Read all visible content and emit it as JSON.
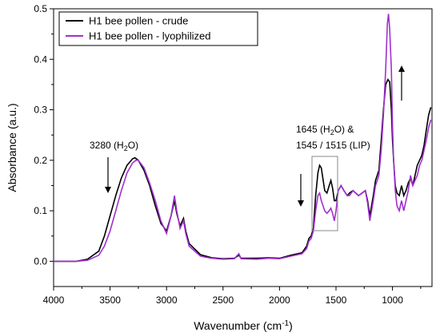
{
  "chart_data": {
    "type": "line",
    "title": "",
    "xlabel_main": "Wavenumber (cm",
    "xlabel_sup": "-1",
    "xlabel_tail": ")",
    "ylabel": "Absorbance (a.u.)",
    "xlim": [
      4000,
      650
    ],
    "ylim": [
      -0.05,
      0.5
    ],
    "x_ticks": [
      4000,
      3500,
      3000,
      2500,
      2000,
      1500,
      1000
    ],
    "y_ticks": [
      0.0,
      0.1,
      0.2,
      0.3,
      0.4,
      0.5
    ],
    "x_tick_labels": [
      "4000",
      "3500",
      "3000",
      "2500",
      "2000",
      "1500",
      "1000"
    ],
    "y_tick_labels": [
      "0.0",
      "0.1",
      "0.2",
      "0.3",
      "0.4",
      "0.5"
    ],
    "legend_position": "top-left",
    "series": [
      {
        "name": "H1 bee pollen - crude",
        "color": "#000000",
        "points": [
          [
            4000,
            0
          ],
          [
            3800,
            0.0
          ],
          [
            3700,
            0.004
          ],
          [
            3600,
            0.02
          ],
          [
            3550,
            0.05
          ],
          [
            3500,
            0.09
          ],
          [
            3450,
            0.13
          ],
          [
            3400,
            0.165
          ],
          [
            3350,
            0.19
          ],
          [
            3300,
            0.203
          ],
          [
            3280,
            0.205
          ],
          [
            3250,
            0.2
          ],
          [
            3200,
            0.18
          ],
          [
            3150,
            0.15
          ],
          [
            3100,
            0.11
          ],
          [
            3050,
            0.075
          ],
          [
            3000,
            0.06
          ],
          [
            2960,
            0.09
          ],
          [
            2930,
            0.12
          ],
          [
            2910,
            0.095
          ],
          [
            2880,
            0.07
          ],
          [
            2850,
            0.085
          ],
          [
            2830,
            0.06
          ],
          [
            2800,
            0.035
          ],
          [
            2700,
            0.013
          ],
          [
            2600,
            0.007
          ],
          [
            2500,
            0.005
          ],
          [
            2400,
            0.006
          ],
          [
            2360,
            0.012
          ],
          [
            2340,
            0.006
          ],
          [
            2200,
            0.006
          ],
          [
            2100,
            0.007
          ],
          [
            2000,
            0.006
          ],
          [
            1900,
            0.012
          ],
          [
            1800,
            0.017
          ],
          [
            1760,
            0.03
          ],
          [
            1740,
            0.045
          ],
          [
            1720,
            0.05
          ],
          [
            1700,
            0.065
          ],
          [
            1680,
            0.13
          ],
          [
            1660,
            0.175
          ],
          [
            1645,
            0.19
          ],
          [
            1630,
            0.185
          ],
          [
            1600,
            0.14
          ],
          [
            1580,
            0.135
          ],
          [
            1560,
            0.15
          ],
          [
            1545,
            0.16
          ],
          [
            1530,
            0.145
          ],
          [
            1515,
            0.12
          ],
          [
            1500,
            0.12
          ],
          [
            1480,
            0.14
          ],
          [
            1455,
            0.15
          ],
          [
            1430,
            0.14
          ],
          [
            1400,
            0.13
          ],
          [
            1380,
            0.135
          ],
          [
            1350,
            0.14
          ],
          [
            1300,
            0.13
          ],
          [
            1240,
            0.14
          ],
          [
            1220,
            0.12
          ],
          [
            1200,
            0.09
          ],
          [
            1170,
            0.13
          ],
          [
            1150,
            0.16
          ],
          [
            1120,
            0.18
          ],
          [
            1100,
            0.24
          ],
          [
            1080,
            0.3
          ],
          [
            1060,
            0.35
          ],
          [
            1040,
            0.36
          ],
          [
            1025,
            0.355
          ],
          [
            1010,
            0.3
          ],
          [
            1000,
            0.24
          ],
          [
            990,
            0.2
          ],
          [
            975,
            0.15
          ],
          [
            960,
            0.135
          ],
          [
            940,
            0.13
          ],
          [
            920,
            0.15
          ],
          [
            900,
            0.13
          ],
          [
            880,
            0.14
          ],
          [
            860,
            0.155
          ],
          [
            840,
            0.165
          ],
          [
            820,
            0.15
          ],
          [
            800,
            0.17
          ],
          [
            780,
            0.19
          ],
          [
            760,
            0.2
          ],
          [
            740,
            0.21
          ],
          [
            720,
            0.23
          ],
          [
            700,
            0.26
          ],
          [
            680,
            0.29
          ],
          [
            660,
            0.305
          ]
        ]
      },
      {
        "name": "H1 bee pollen - lyophilized",
        "color": "#a030d0",
        "points": [
          [
            4000,
            0
          ],
          [
            3800,
            0.0
          ],
          [
            3700,
            0.002
          ],
          [
            3600,
            0.012
          ],
          [
            3550,
            0.03
          ],
          [
            3500,
            0.06
          ],
          [
            3450,
            0.1
          ],
          [
            3400,
            0.14
          ],
          [
            3350,
            0.175
          ],
          [
            3300,
            0.195
          ],
          [
            3270,
            0.2
          ],
          [
            3250,
            0.2
          ],
          [
            3200,
            0.185
          ],
          [
            3150,
            0.155
          ],
          [
            3100,
            0.12
          ],
          [
            3050,
            0.08
          ],
          [
            3000,
            0.055
          ],
          [
            2960,
            0.09
          ],
          [
            2930,
            0.13
          ],
          [
            2910,
            0.1
          ],
          [
            2880,
            0.065
          ],
          [
            2850,
            0.08
          ],
          [
            2830,
            0.055
          ],
          [
            2800,
            0.03
          ],
          [
            2700,
            0.01
          ],
          [
            2600,
            0.006
          ],
          [
            2500,
            0.004
          ],
          [
            2400,
            0.005
          ],
          [
            2360,
            0.015
          ],
          [
            2340,
            0.005
          ],
          [
            2200,
            0.004
          ],
          [
            2100,
            0.006
          ],
          [
            2000,
            0.005
          ],
          [
            1900,
            0.01
          ],
          [
            1800,
            0.015
          ],
          [
            1760,
            0.025
          ],
          [
            1740,
            0.04
          ],
          [
            1720,
            0.045
          ],
          [
            1700,
            0.06
          ],
          [
            1680,
            0.1
          ],
          [
            1660,
            0.13
          ],
          [
            1645,
            0.135
          ],
          [
            1630,
            0.12
          ],
          [
            1600,
            0.1
          ],
          [
            1580,
            0.095
          ],
          [
            1560,
            0.1
          ],
          [
            1545,
            0.105
          ],
          [
            1530,
            0.095
          ],
          [
            1515,
            0.08
          ],
          [
            1500,
            0.1
          ],
          [
            1480,
            0.14
          ],
          [
            1455,
            0.15
          ],
          [
            1430,
            0.14
          ],
          [
            1400,
            0.13
          ],
          [
            1380,
            0.13
          ],
          [
            1350,
            0.14
          ],
          [
            1300,
            0.13
          ],
          [
            1240,
            0.14
          ],
          [
            1220,
            0.115
          ],
          [
            1200,
            0.08
          ],
          [
            1170,
            0.12
          ],
          [
            1150,
            0.15
          ],
          [
            1120,
            0.17
          ],
          [
            1100,
            0.22
          ],
          [
            1080,
            0.29
          ],
          [
            1060,
            0.38
          ],
          [
            1045,
            0.47
          ],
          [
            1035,
            0.49
          ],
          [
            1025,
            0.46
          ],
          [
            1010,
            0.38
          ],
          [
            1000,
            0.27
          ],
          [
            990,
            0.2
          ],
          [
            975,
            0.14
          ],
          [
            960,
            0.11
          ],
          [
            940,
            0.1
          ],
          [
            920,
            0.12
          ],
          [
            900,
            0.1
          ],
          [
            880,
            0.12
          ],
          [
            860,
            0.14
          ],
          [
            840,
            0.17
          ],
          [
            820,
            0.15
          ],
          [
            800,
            0.16
          ],
          [
            780,
            0.17
          ],
          [
            760,
            0.19
          ],
          [
            740,
            0.2
          ],
          [
            720,
            0.22
          ],
          [
            700,
            0.24
          ],
          [
            680,
            0.265
          ],
          [
            660,
            0.28
          ]
        ]
      }
    ],
    "annotations": [
      {
        "main": "3280 (H",
        "sub": "2",
        "tail": "O)"
      },
      {
        "main": "1645 (H",
        "sub": "2",
        "tail": "O) &"
      },
      {
        "main": "1545 / 1515 (LIP)",
        "sub": "",
        "tail": ""
      }
    ]
  }
}
